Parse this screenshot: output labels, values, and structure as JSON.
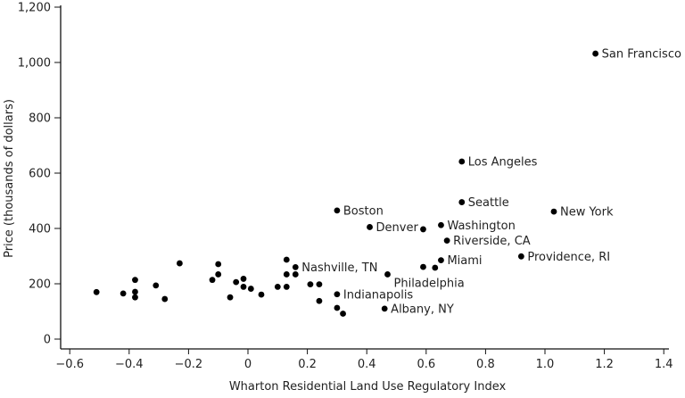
{
  "chart_data": {
    "type": "scatter",
    "title": "",
    "xlabel": "Wharton Residential Land Use Regulatory Index",
    "ylabel": "Price (thousands of dollars)",
    "xlim": [
      -0.63,
      1.42
    ],
    "ylim": [
      -40,
      1210
    ],
    "xticks": [
      -0.6,
      -0.4,
      -0.2,
      0,
      0.2,
      0.4,
      0.6,
      0.8,
      1.0,
      1.2,
      1.4
    ],
    "xtick_labels": [
      "−0.6",
      "−0.4",
      "−0.2",
      "0",
      "0.2",
      "0.4",
      "0.6",
      "0.8",
      "1.0",
      "1.2",
      "1.4"
    ],
    "yticks": [
      0,
      200,
      400,
      600,
      800,
      1000,
      1200
    ],
    "ytick_labels": [
      "0",
      "200",
      "400",
      "600",
      "800",
      "1,000",
      "1,200"
    ],
    "grid": false,
    "marker_color": "#000000",
    "points": [
      {
        "x": 1.17,
        "y": 1032,
        "label": "San Francisco"
      },
      {
        "x": 0.72,
        "y": 642,
        "label": "Los Angeles"
      },
      {
        "x": 0.72,
        "y": 495,
        "label": "Seattle"
      },
      {
        "x": 0.3,
        "y": 465,
        "label": "Boston"
      },
      {
        "x": 1.03,
        "y": 461,
        "label": "New York"
      },
      {
        "x": 0.65,
        "y": 412,
        "label": "Washington"
      },
      {
        "x": 0.41,
        "y": 405,
        "label": "Denver"
      },
      {
        "x": 0.59,
        "y": 397,
        "label": ""
      },
      {
        "x": 0.67,
        "y": 356,
        "label": "Riverside, CA"
      },
      {
        "x": 0.92,
        "y": 299,
        "label": "Providence, RI"
      },
      {
        "x": 0.65,
        "y": 285,
        "label": "Miami"
      },
      {
        "x": 0.63,
        "y": 258,
        "label": ""
      },
      {
        "x": 0.59,
        "y": 261,
        "label": ""
      },
      {
        "x": 0.47,
        "y": 234,
        "label": "Philadelphia"
      },
      {
        "x": 0.16,
        "y": 260,
        "label": "Nashville, TN"
      },
      {
        "x": 0.3,
        "y": 162,
        "label": "Indianapolis"
      },
      {
        "x": 0.46,
        "y": 110,
        "label": "Albany, NY"
      },
      {
        "x": 0.3,
        "y": 113,
        "label": ""
      },
      {
        "x": 0.32,
        "y": 92,
        "label": ""
      },
      {
        "x": 0.24,
        "y": 138,
        "label": ""
      },
      {
        "x": 0.21,
        "y": 198,
        "label": ""
      },
      {
        "x": 0.24,
        "y": 198,
        "label": ""
      },
      {
        "x": 0.16,
        "y": 234,
        "label": ""
      },
      {
        "x": 0.13,
        "y": 234,
        "label": ""
      },
      {
        "x": 0.13,
        "y": 287,
        "label": ""
      },
      {
        "x": 0.13,
        "y": 189,
        "label": ""
      },
      {
        "x": 0.1,
        "y": 189,
        "label": ""
      },
      {
        "x": 0.045,
        "y": 161,
        "label": ""
      },
      {
        "x": 0.01,
        "y": 182,
        "label": ""
      },
      {
        "x": -0.015,
        "y": 189,
        "label": ""
      },
      {
        "x": -0.015,
        "y": 218,
        "label": ""
      },
      {
        "x": -0.04,
        "y": 206,
        "label": ""
      },
      {
        "x": -0.06,
        "y": 151,
        "label": ""
      },
      {
        "x": -0.1,
        "y": 234,
        "label": ""
      },
      {
        "x": -0.1,
        "y": 271,
        "label": ""
      },
      {
        "x": -0.12,
        "y": 214,
        "label": ""
      },
      {
        "x": -0.23,
        "y": 274,
        "label": ""
      },
      {
        "x": -0.28,
        "y": 145,
        "label": ""
      },
      {
        "x": -0.31,
        "y": 194,
        "label": ""
      },
      {
        "x": -0.38,
        "y": 214,
        "label": ""
      },
      {
        "x": -0.38,
        "y": 171,
        "label": ""
      },
      {
        "x": -0.38,
        "y": 151,
        "label": ""
      },
      {
        "x": -0.42,
        "y": 165,
        "label": ""
      },
      {
        "x": -0.51,
        "y": 170,
        "label": ""
      }
    ]
  }
}
